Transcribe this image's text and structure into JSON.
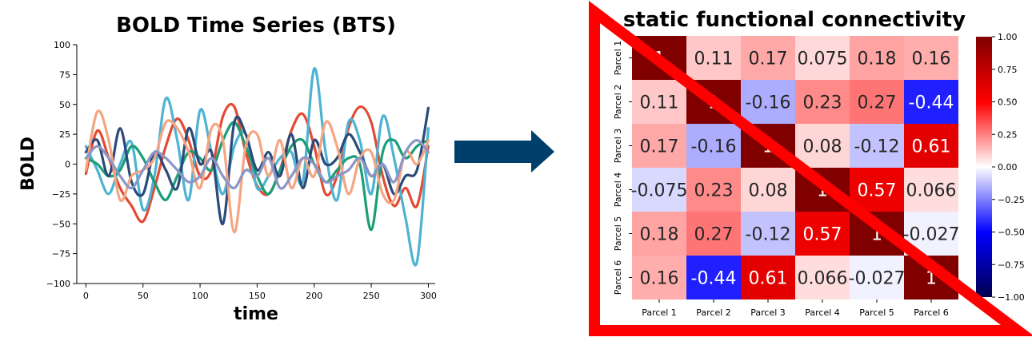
{
  "chart_data": [
    {
      "type": "line",
      "title": "BOLD Time Series (BTS)",
      "xlabel": "time",
      "ylabel": "BOLD",
      "xlim": [
        -8,
        306
      ],
      "ylim": [
        -100,
        100
      ],
      "xticks": [
        0,
        50,
        100,
        150,
        200,
        250,
        300
      ],
      "yticks": [
        -100,
        -75,
        -50,
        -25,
        0,
        25,
        50,
        75,
        100
      ],
      "grid": false,
      "series": [
        {
          "color": "#e34a33",
          "x": [
            0,
            10,
            20,
            30,
            40,
            50,
            60,
            70,
            80,
            90,
            100,
            110,
            120,
            130,
            140,
            150,
            160,
            170,
            180,
            190,
            200,
            210,
            220,
            230,
            240,
            250,
            260,
            270,
            280,
            290,
            300
          ],
          "y": [
            -8,
            28,
            5,
            -20,
            -35,
            -48,
            -20,
            15,
            38,
            20,
            -10,
            -5,
            40,
            48,
            10,
            -18,
            -25,
            -5,
            28,
            42,
            15,
            -25,
            -10,
            30,
            48,
            35,
            -10,
            -35,
            -20,
            -35,
            15
          ]
        },
        {
          "color": "#4eb3d3",
          "x": [
            0,
            10,
            20,
            30,
            40,
            50,
            60,
            70,
            80,
            90,
            100,
            110,
            120,
            130,
            140,
            150,
            160,
            170,
            180,
            190,
            200,
            210,
            220,
            230,
            240,
            250,
            260,
            270,
            280,
            290,
            300
          ],
          "y": [
            15,
            -5,
            -25,
            0,
            18,
            -38,
            -10,
            55,
            20,
            -30,
            45,
            10,
            -25,
            15,
            25,
            -20,
            -10,
            5,
            10,
            -15,
            80,
            10,
            -30,
            35,
            20,
            -25,
            40,
            5,
            -45,
            -82,
            30
          ]
        },
        {
          "color": "#1b9e77",
          "x": [
            0,
            10,
            20,
            30,
            40,
            50,
            60,
            70,
            80,
            90,
            100,
            110,
            120,
            130,
            140,
            150,
            160,
            170,
            180,
            190,
            200,
            210,
            220,
            230,
            240,
            250,
            260,
            270,
            280,
            290,
            300
          ],
          "y": [
            5,
            0,
            -10,
            -5,
            15,
            5,
            -15,
            -30,
            -10,
            10,
            5,
            -5,
            20,
            35,
            15,
            -10,
            -25,
            -5,
            15,
            20,
            0,
            -15,
            -5,
            5,
            0,
            -55,
            10,
            20,
            5,
            15,
            20
          ]
        },
        {
          "color": "#2b4a7a",
          "x": [
            0,
            10,
            20,
            30,
            40,
            50,
            60,
            70,
            80,
            90,
            100,
            110,
            120,
            130,
            140,
            150,
            160,
            170,
            180,
            190,
            200,
            210,
            220,
            230,
            240,
            250,
            260,
            270,
            280,
            290,
            300
          ],
          "y": [
            10,
            20,
            -10,
            30,
            -15,
            -25,
            10,
            -5,
            -20,
            30,
            0,
            10,
            -50,
            35,
            25,
            -5,
            10,
            -10,
            25,
            -20,
            20,
            0,
            5,
            25,
            10,
            -10,
            0,
            -25,
            -10,
            -5,
            47
          ]
        },
        {
          "color": "#f4a582",
          "x": [
            0,
            10,
            20,
            30,
            40,
            50,
            60,
            70,
            80,
            90,
            100,
            110,
            120,
            130,
            140,
            150,
            160,
            170,
            180,
            190,
            200,
            210,
            220,
            230,
            240,
            250,
            260,
            270,
            280,
            290,
            300
          ],
          "y": [
            -5,
            44,
            20,
            -30,
            -10,
            -5,
            5,
            35,
            30,
            10,
            -20,
            30,
            20,
            -57,
            15,
            25,
            -10,
            20,
            -20,
            5,
            -10,
            35,
            15,
            -25,
            5,
            10,
            -25,
            -30,
            10,
            0,
            20
          ]
        },
        {
          "color": "#8c96c6",
          "x": [
            0,
            10,
            20,
            30,
            40,
            50,
            60,
            70,
            80,
            90,
            100,
            110,
            120,
            130,
            140,
            150,
            160,
            170,
            180,
            190,
            200,
            210,
            220,
            230,
            240,
            250,
            260,
            270,
            280,
            290,
            300
          ],
          "y": [
            5,
            15,
            5,
            -10,
            -20,
            -5,
            10,
            5,
            -5,
            -15,
            -10,
            5,
            -10,
            -20,
            -5,
            -10,
            5,
            -20,
            -10,
            5,
            0,
            -15,
            -10,
            -5,
            5,
            -10,
            0,
            -15,
            10,
            20,
            10
          ]
        }
      ]
    },
    {
      "type": "heatmap",
      "title": "static functional connectivity",
      "rows": [
        "Parcel 1",
        "Parcel 2",
        "Parcel 3",
        "Parcel 4",
        "Parcel 5",
        "Parcel 6"
      ],
      "cols": [
        "Parcel 1",
        "Parcel 2",
        "Parcel 3",
        "Parcel 4",
        "Parcel 5",
        "Parcel 6"
      ],
      "values": [
        [
          1,
          0.11,
          0.17,
          0.075,
          0.18,
          0.16
        ],
        [
          0.11,
          1,
          -0.16,
          0.23,
          0.27,
          -0.44
        ],
        [
          0.17,
          -0.16,
          1,
          0.08,
          -0.12,
          0.61
        ],
        [
          -0.075,
          0.23,
          0.08,
          1,
          0.57,
          0.066
        ],
        [
          0.18,
          0.27,
          -0.12,
          0.57,
          1,
          -0.027
        ],
        [
          0.16,
          -0.44,
          0.61,
          0.066,
          -0.027,
          1
        ]
      ],
      "labels": [
        [
          "1",
          "0.11",
          "0.17",
          "0.075",
          "0.18",
          "0.16"
        ],
        [
          "0.11",
          "1",
          "-0.16",
          "0.23",
          "0.27",
          "-0.44"
        ],
        [
          "0.17",
          "-0.16",
          "1",
          "0.08",
          "-0.12",
          "0.61"
        ],
        [
          "-0.075",
          "0.23",
          "0.08",
          "1",
          "0.57",
          "0.066"
        ],
        [
          "0.18",
          "0.27",
          "-0.12",
          "0.57",
          "1",
          "-0.027"
        ],
        [
          "0.16",
          "-0.44",
          "0.61",
          "0.066",
          "-0.027",
          "1"
        ]
      ],
      "colormap": "seismic",
      "vmin": -1,
      "vmax": 1,
      "colorbar_ticks": [
        "1.00",
        "0.75",
        "0.50",
        "0.25",
        "0.00",
        "−0.25",
        "−0.50",
        "−0.75",
        "−1.00"
      ],
      "overlay": {
        "shape": "triangle-outline",
        "color": "#ff0000"
      }
    }
  ],
  "arrow_color": "#003f6b"
}
